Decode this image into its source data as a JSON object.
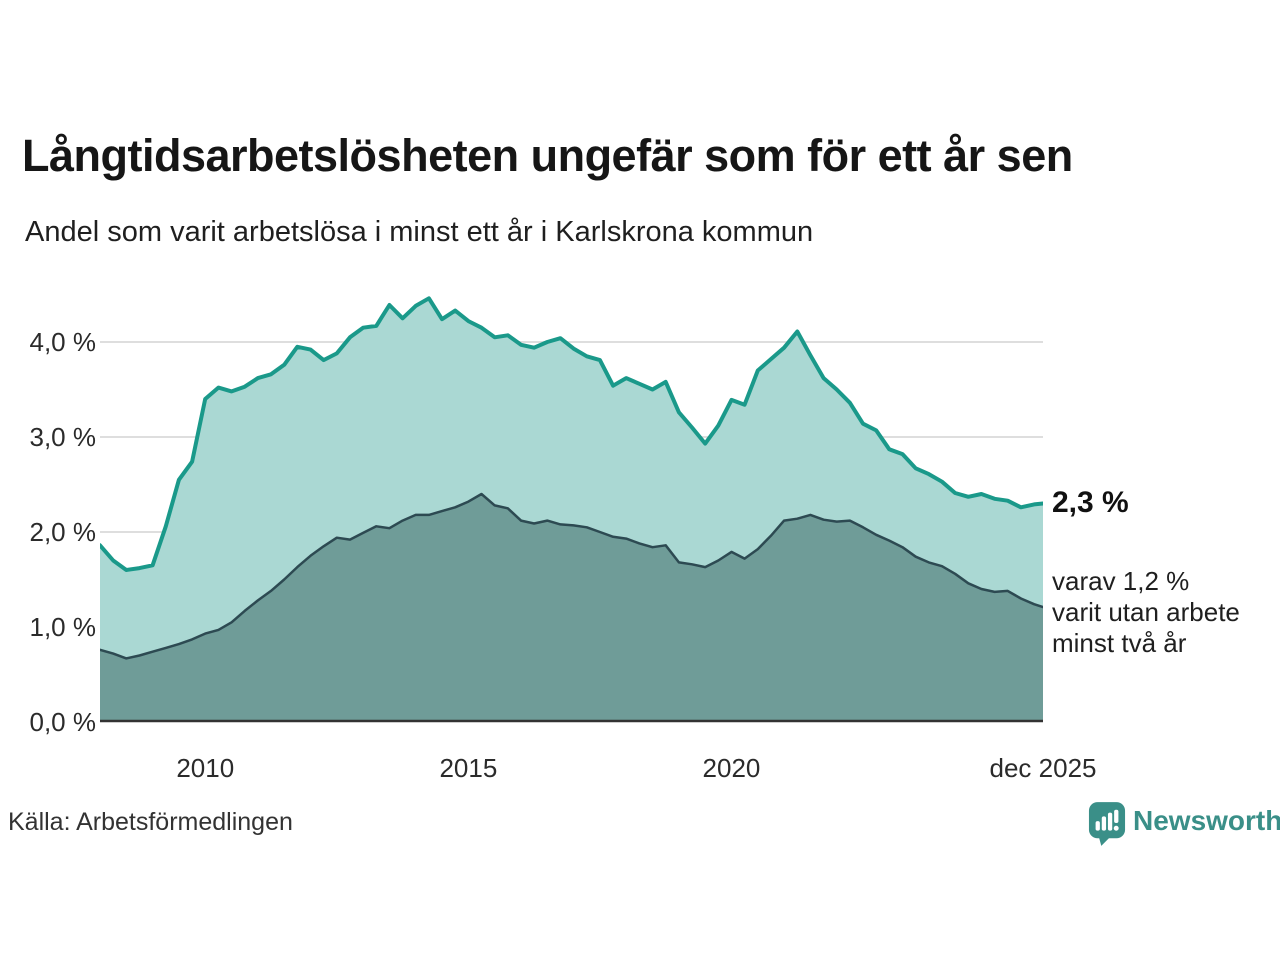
{
  "header": {
    "title": "Långtidsarbetslösheten ungefär som för ett år sen",
    "subtitle": "Andel som varit arbetslösa i minst ett år i Karlskrona kommun"
  },
  "annotations": {
    "value_label": "2,3 %",
    "detail_lines": [
      "varav 1,2 %",
      "varit utan arbete",
      "minst två år"
    ]
  },
  "footer": {
    "source": "Källa: Arbetsförmedlingen",
    "brand": "Newsworthy"
  },
  "colors": {
    "accent_teal": "#1a998a",
    "light_fill": "#aad8d3",
    "dark_line": "#2d4a52",
    "dark_fill": "#6f9c98",
    "grid": "#dedede",
    "axis": "#333333",
    "brand_teal": "#3a8f88"
  },
  "chart_data": {
    "type": "area",
    "title": "Långtidsarbetslösheten ungefär som för ett år sen",
    "subtitle": "Andel som varit arbetslösa i minst ett år i Karlskrona kommun",
    "xlabel": "",
    "ylabel": "",
    "xlim": [
      2008,
      2025.92
    ],
    "ylim": [
      0,
      4.65
    ],
    "grid": "horizontal",
    "grid_color": "#dedede",
    "axis_color": "#333333",
    "y_ticks": [
      {
        "label": "0,0 %",
        "value": 0
      },
      {
        "label": "1,0 %",
        "value": 1
      },
      {
        "label": "2,0 %",
        "value": 2
      },
      {
        "label": "3,0 %",
        "value": 3
      },
      {
        "label": "4,0 %",
        "value": 4
      }
    ],
    "x_ticks": [
      {
        "label": "2010",
        "x": 2010
      },
      {
        "label": "2015",
        "x": 2015
      },
      {
        "label": "2020",
        "x": 2020
      },
      {
        "label": "dec 2025",
        "x": 2025.92
      }
    ],
    "series": [
      {
        "name": "Andel arbetslösa minst ett år",
        "end_value_label": "2,3 %",
        "color": "#1a998a",
        "fill": "#aad8d3",
        "line_width": 4,
        "points": [
          [
            2008.0,
            1.86
          ],
          [
            2008.25,
            1.7
          ],
          [
            2008.5,
            1.6
          ],
          [
            2008.75,
            1.62
          ],
          [
            2009.0,
            1.65
          ],
          [
            2009.25,
            2.06
          ],
          [
            2009.5,
            2.55
          ],
          [
            2009.75,
            2.74
          ],
          [
            2010.0,
            3.4
          ],
          [
            2010.25,
            3.52
          ],
          [
            2010.5,
            3.48
          ],
          [
            2010.75,
            3.53
          ],
          [
            2011.0,
            3.62
          ],
          [
            2011.25,
            3.66
          ],
          [
            2011.5,
            3.76
          ],
          [
            2011.75,
            3.95
          ],
          [
            2012.0,
            3.92
          ],
          [
            2012.25,
            3.81
          ],
          [
            2012.5,
            3.88
          ],
          [
            2012.75,
            4.05
          ],
          [
            2013.0,
            4.15
          ],
          [
            2013.25,
            4.17
          ],
          [
            2013.5,
            4.39
          ],
          [
            2013.75,
            4.25
          ],
          [
            2014.0,
            4.38
          ],
          [
            2014.25,
            4.46
          ],
          [
            2014.5,
            4.24
          ],
          [
            2014.75,
            4.33
          ],
          [
            2015.0,
            4.22
          ],
          [
            2015.25,
            4.15
          ],
          [
            2015.5,
            4.05
          ],
          [
            2015.75,
            4.07
          ],
          [
            2016.0,
            3.97
          ],
          [
            2016.25,
            3.94
          ],
          [
            2016.5,
            4.0
          ],
          [
            2016.75,
            4.04
          ],
          [
            2017.0,
            3.93
          ],
          [
            2017.25,
            3.85
          ],
          [
            2017.5,
            3.81
          ],
          [
            2017.75,
            3.54
          ],
          [
            2018.0,
            3.62
          ],
          [
            2018.25,
            3.56
          ],
          [
            2018.5,
            3.5
          ],
          [
            2018.75,
            3.58
          ],
          [
            2019.0,
            3.26
          ],
          [
            2019.25,
            3.1
          ],
          [
            2019.5,
            2.93
          ],
          [
            2019.75,
            3.12
          ],
          [
            2020.0,
            3.39
          ],
          [
            2020.25,
            3.34
          ],
          [
            2020.5,
            3.7
          ],
          [
            2020.75,
            3.82
          ],
          [
            2021.0,
            3.94
          ],
          [
            2021.25,
            4.11
          ],
          [
            2021.5,
            3.86
          ],
          [
            2021.75,
            3.62
          ],
          [
            2022.0,
            3.5
          ],
          [
            2022.25,
            3.36
          ],
          [
            2022.5,
            3.14
          ],
          [
            2022.75,
            3.07
          ],
          [
            2023.0,
            2.87
          ],
          [
            2023.25,
            2.82
          ],
          [
            2023.5,
            2.67
          ],
          [
            2023.75,
            2.61
          ],
          [
            2024.0,
            2.53
          ],
          [
            2024.25,
            2.41
          ],
          [
            2024.5,
            2.37
          ],
          [
            2024.75,
            2.4
          ],
          [
            2025.0,
            2.35
          ],
          [
            2025.25,
            2.33
          ],
          [
            2025.5,
            2.26
          ],
          [
            2025.75,
            2.29
          ],
          [
            2025.92,
            2.3
          ]
        ]
      },
      {
        "name": "varav utan arbete minst två år",
        "end_value_label": "1,2 %",
        "color": "#2d4a52",
        "fill": "#6f9c98",
        "line_width": 2.5,
        "points": [
          [
            2008.0,
            0.76
          ],
          [
            2008.25,
            0.72
          ],
          [
            2008.5,
            0.67
          ],
          [
            2008.75,
            0.7
          ],
          [
            2009.0,
            0.74
          ],
          [
            2009.25,
            0.78
          ],
          [
            2009.5,
            0.82
          ],
          [
            2009.75,
            0.87
          ],
          [
            2010.0,
            0.93
          ],
          [
            2010.25,
            0.97
          ],
          [
            2010.5,
            1.05
          ],
          [
            2010.75,
            1.17
          ],
          [
            2011.0,
            1.28
          ],
          [
            2011.25,
            1.38
          ],
          [
            2011.5,
            1.5
          ],
          [
            2011.75,
            1.63
          ],
          [
            2012.0,
            1.75
          ],
          [
            2012.25,
            1.85
          ],
          [
            2012.5,
            1.94
          ],
          [
            2012.75,
            1.92
          ],
          [
            2013.0,
            1.99
          ],
          [
            2013.25,
            2.06
          ],
          [
            2013.5,
            2.04
          ],
          [
            2013.75,
            2.12
          ],
          [
            2014.0,
            2.18
          ],
          [
            2014.25,
            2.18
          ],
          [
            2014.5,
            2.22
          ],
          [
            2014.75,
            2.26
          ],
          [
            2015.0,
            2.32
          ],
          [
            2015.25,
            2.4
          ],
          [
            2015.5,
            2.28
          ],
          [
            2015.75,
            2.25
          ],
          [
            2016.0,
            2.12
          ],
          [
            2016.25,
            2.09
          ],
          [
            2016.5,
            2.12
          ],
          [
            2016.75,
            2.08
          ],
          [
            2017.0,
            2.07
          ],
          [
            2017.25,
            2.05
          ],
          [
            2017.5,
            2.0
          ],
          [
            2017.75,
            1.95
          ],
          [
            2018.0,
            1.93
          ],
          [
            2018.25,
            1.88
          ],
          [
            2018.5,
            1.84
          ],
          [
            2018.75,
            1.86
          ],
          [
            2019.0,
            1.68
          ],
          [
            2019.25,
            1.66
          ],
          [
            2019.5,
            1.63
          ],
          [
            2019.75,
            1.7
          ],
          [
            2020.0,
            1.79
          ],
          [
            2020.25,
            1.72
          ],
          [
            2020.5,
            1.82
          ],
          [
            2020.75,
            1.96
          ],
          [
            2021.0,
            2.12
          ],
          [
            2021.25,
            2.14
          ],
          [
            2021.5,
            2.18
          ],
          [
            2021.75,
            2.13
          ],
          [
            2022.0,
            2.11
          ],
          [
            2022.25,
            2.12
          ],
          [
            2022.5,
            2.05
          ],
          [
            2022.75,
            1.97
          ],
          [
            2023.0,
            1.91
          ],
          [
            2023.25,
            1.84
          ],
          [
            2023.5,
            1.74
          ],
          [
            2023.75,
            1.68
          ],
          [
            2024.0,
            1.64
          ],
          [
            2024.25,
            1.56
          ],
          [
            2024.5,
            1.46
          ],
          [
            2024.75,
            1.4
          ],
          [
            2025.0,
            1.37
          ],
          [
            2025.25,
            1.38
          ],
          [
            2025.5,
            1.3
          ],
          [
            2025.75,
            1.24
          ],
          [
            2025.92,
            1.21
          ]
        ]
      }
    ],
    "legend_position": "none"
  }
}
